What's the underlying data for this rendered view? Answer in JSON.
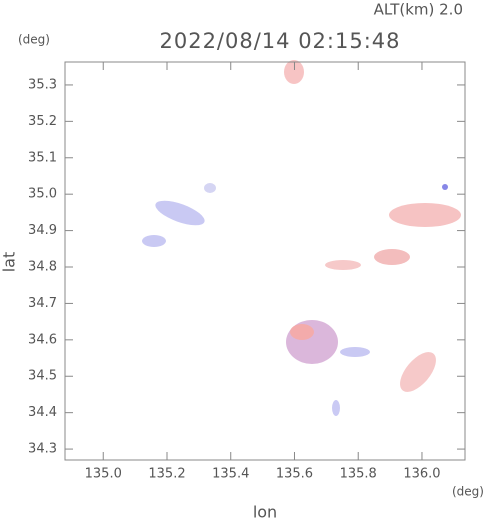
{
  "chart_data": {
    "type": "map",
    "header": "ALT(km) 2.0",
    "title": "2022/08/14 02:15:48",
    "y_unit": "(deg)",
    "x_unit": "(deg)",
    "xlabel": "lon",
    "ylabel": "lat",
    "xlim": [
      134.88,
      136.135
    ],
    "ylim": [
      34.27,
      35.363
    ],
    "xticks": [
      {
        "value": 135.0,
        "label": "135.0"
      },
      135.2,
      135.4,
      135.6,
      135.8,
      {
        "value": 136.0,
        "label": "136.0"
      }
    ],
    "yticks": [
      34.3,
      34.4,
      34.5,
      34.6,
      34.7,
      34.8,
      34.9,
      {
        "value": 35.0,
        "label": "35.0"
      },
      35.1,
      35.2,
      35.3
    ]
  }
}
